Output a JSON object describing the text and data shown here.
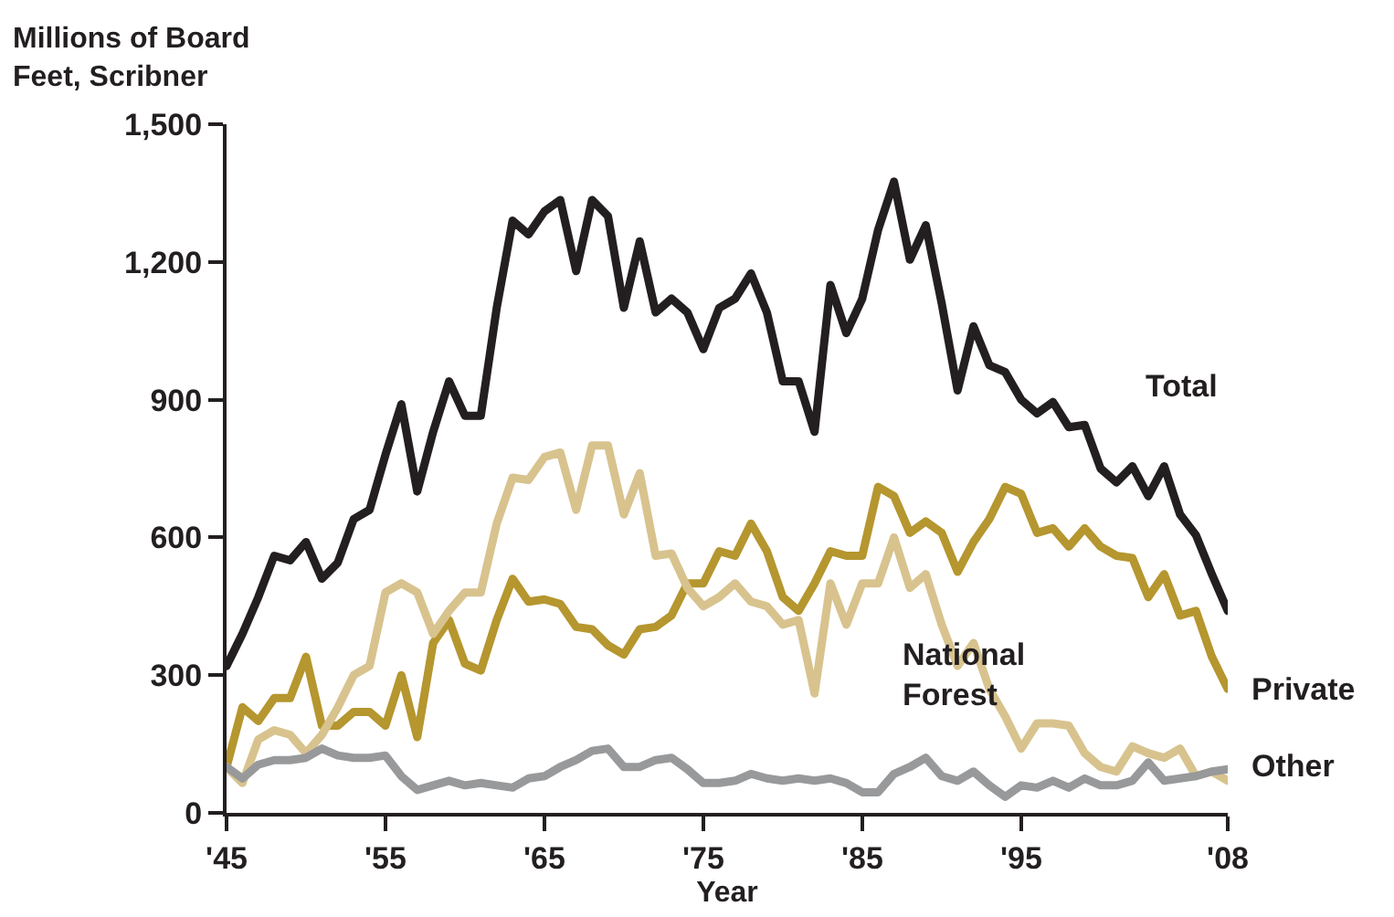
{
  "chart_data": {
    "type": "line",
    "xlabel": "Year",
    "ylabel": "Millions of Board Feet, Scribner",
    "x": [
      1945,
      1946,
      1947,
      1948,
      1949,
      1950,
      1951,
      1952,
      1953,
      1954,
      1955,
      1956,
      1957,
      1958,
      1959,
      1960,
      1961,
      1962,
      1963,
      1964,
      1965,
      1966,
      1967,
      1968,
      1969,
      1970,
      1971,
      1972,
      1973,
      1974,
      1975,
      1976,
      1977,
      1978,
      1979,
      1980,
      1981,
      1982,
      1983,
      1984,
      1985,
      1986,
      1987,
      1988,
      1989,
      1990,
      1991,
      1992,
      1993,
      1994,
      1995,
      1996,
      1997,
      1998,
      1999,
      2000,
      2001,
      2002,
      2003,
      2004,
      2005,
      2006,
      2007,
      2008
    ],
    "series": [
      {
        "name": "Total",
        "color": "#231f20",
        "values": [
          320,
          390,
          470,
          560,
          550,
          590,
          510,
          545,
          640,
          660,
          780,
          890,
          700,
          830,
          940,
          865,
          865,
          1100,
          1290,
          1260,
          1310,
          1335,
          1180,
          1335,
          1300,
          1100,
          1245,
          1090,
          1120,
          1090,
          1010,
          1100,
          1120,
          1175,
          1090,
          940,
          940,
          830,
          1150,
          1045,
          1120,
          1270,
          1375,
          1205,
          1280,
          1110,
          920,
          1060,
          975,
          960,
          900,
          870,
          895,
          840,
          845,
          750,
          720,
          755,
          690,
          755,
          650,
          605,
          520,
          440
        ]
      },
      {
        "name": "Private",
        "color": "#b5962f",
        "values": [
          100,
          230,
          200,
          250,
          250,
          340,
          190,
          190,
          220,
          220,
          190,
          300,
          165,
          370,
          420,
          325,
          310,
          420,
          510,
          460,
          465,
          455,
          405,
          400,
          365,
          345,
          400,
          405,
          430,
          500,
          500,
          570,
          560,
          630,
          570,
          470,
          440,
          500,
          570,
          560,
          560,
          710,
          690,
          610,
          635,
          610,
          525,
          590,
          640,
          710,
          695,
          610,
          620,
          580,
          620,
          580,
          560,
          555,
          470,
          520,
          430,
          440,
          340,
          270
        ]
      },
      {
        "name": "National Forest",
        "color": "#d8c38e",
        "values": [
          100,
          65,
          160,
          180,
          170,
          130,
          170,
          230,
          300,
          320,
          480,
          500,
          480,
          390,
          440,
          480,
          480,
          630,
          730,
          725,
          775,
          785,
          660,
          800,
          800,
          650,
          740,
          560,
          565,
          490,
          450,
          470,
          500,
          460,
          450,
          410,
          420,
          260,
          500,
          410,
          500,
          500,
          600,
          490,
          520,
          410,
          320,
          370,
          270,
          210,
          140,
          195,
          195,
          190,
          130,
          100,
          90,
          145,
          130,
          120,
          140,
          80,
          90,
          70
        ]
      },
      {
        "name": "Other",
        "color": "#98999b",
        "values": [
          100,
          75,
          105,
          115,
          115,
          120,
          140,
          125,
          120,
          120,
          125,
          80,
          50,
          60,
          70,
          60,
          65,
          60,
          55,
          75,
          80,
          100,
          115,
          135,
          140,
          100,
          100,
          115,
          120,
          95,
          65,
          65,
          70,
          85,
          75,
          70,
          75,
          70,
          75,
          65,
          45,
          45,
          85,
          100,
          120,
          80,
          70,
          90,
          60,
          35,
          60,
          55,
          70,
          55,
          75,
          60,
          60,
          70,
          110,
          70,
          75,
          80,
          90,
          95
        ]
      }
    ],
    "xlim": [
      1945,
      2008
    ],
    "xticks": [
      {
        "value": 1945,
        "label": "'45"
      },
      {
        "value": 1955,
        "label": "'55"
      },
      {
        "value": 1965,
        "label": "'65"
      },
      {
        "value": 1975,
        "label": "'75"
      },
      {
        "value": 1985,
        "label": "'85"
      },
      {
        "value": 1995,
        "label": "'95"
      },
      {
        "value": 2008,
        "label": "'08"
      }
    ],
    "ylim": [
      0,
      1500
    ],
    "yticks": [
      {
        "value": 0,
        "label": "0"
      },
      {
        "value": 300,
        "label": "300"
      },
      {
        "value": 600,
        "label": "600"
      },
      {
        "value": 900,
        "label": "900"
      },
      {
        "value": 1200,
        "label": "1,200"
      },
      {
        "value": 1500,
        "label": "1,500"
      }
    ],
    "grid": false,
    "legend": false,
    "marker": "none",
    "line_style": "solid"
  }
}
